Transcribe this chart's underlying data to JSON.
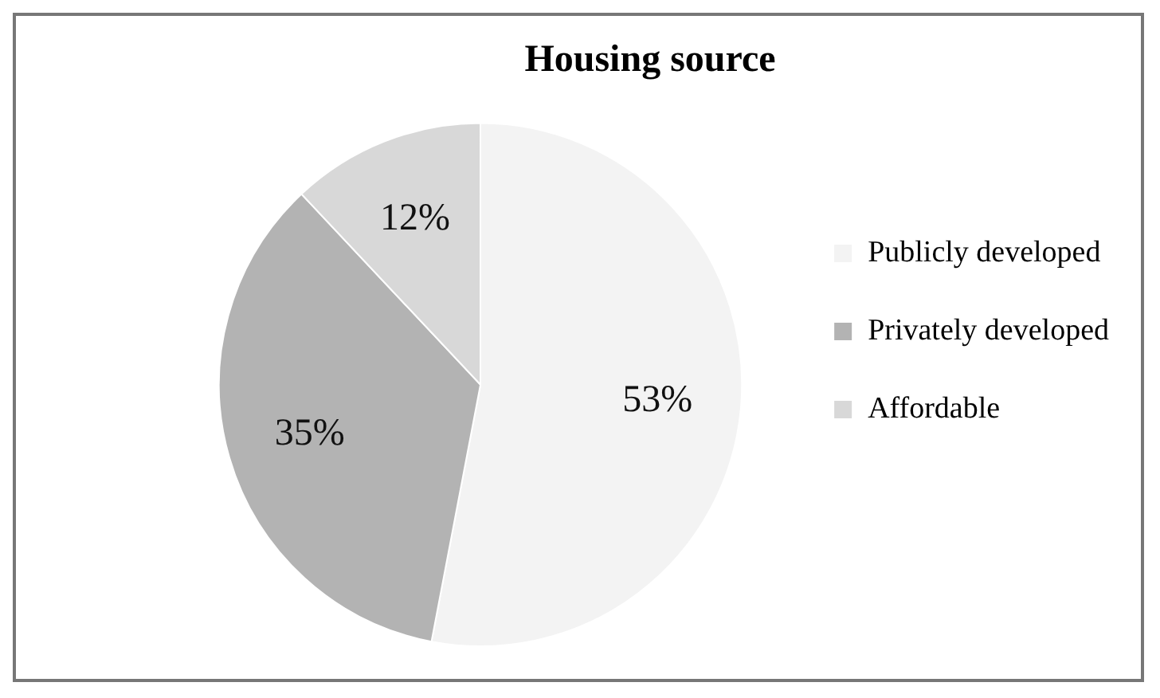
{
  "chart_data": {
    "type": "pie",
    "title": "Housing source",
    "categories": [
      "Publicly developed",
      "Privately developed",
      "Affordable"
    ],
    "values": [
      53,
      35,
      12
    ],
    "value_labels": [
      "53%",
      "35%",
      "12%"
    ],
    "colors": [
      "#f3f3f3",
      "#b3b3b3",
      "#d8d8d8"
    ],
    "legend": "right"
  }
}
